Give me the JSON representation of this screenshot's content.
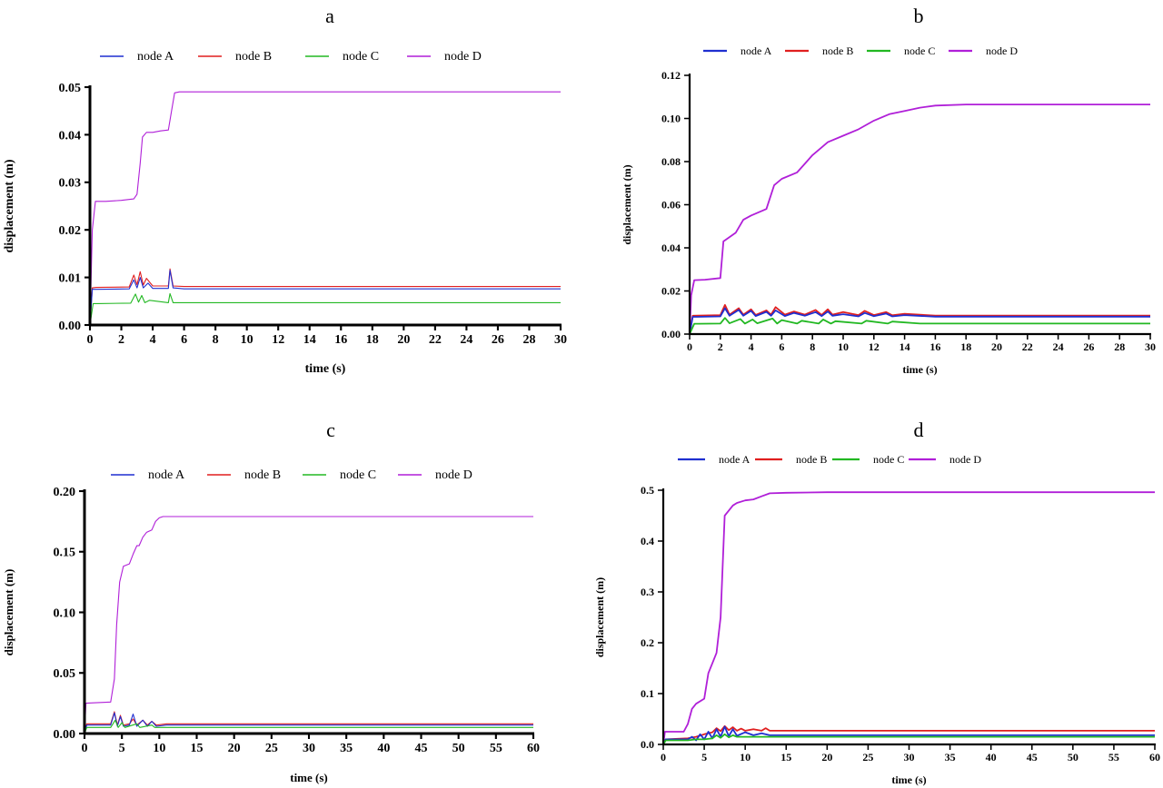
{
  "chart_data": [
    {
      "type": "line",
      "panel": "a",
      "xlabel": "time (s)",
      "ylabel": "displacement (m)",
      "xlim": [
        0,
        30
      ],
      "ylim": [
        0,
        0.05
      ],
      "xticks": [
        0,
        2,
        4,
        6,
        8,
        10,
        12,
        14,
        16,
        18,
        20,
        22,
        24,
        26,
        28,
        30
      ],
      "yticks": [
        "0.00",
        "0.01",
        "0.02",
        "0.03",
        "0.04",
        "0.05"
      ],
      "legend": "top",
      "series": [
        {
          "name": "node A",
          "color": "#1f2fd0",
          "x": [
            0,
            0.15,
            0.4,
            2.5,
            2.8,
            3.0,
            3.2,
            3.4,
            3.7,
            4.0,
            5.0,
            5.1,
            5.3,
            6,
            30
          ],
          "y": [
            0,
            0.0075,
            0.0075,
            0.0076,
            0.0095,
            0.0078,
            0.01,
            0.0078,
            0.0088,
            0.0077,
            0.0077,
            0.0115,
            0.0078,
            0.0076,
            0.0076
          ]
        },
        {
          "name": "node B",
          "color": "#e01f1f",
          "x": [
            0,
            0.15,
            0.4,
            2.5,
            2.8,
            3.0,
            3.2,
            3.4,
            3.6,
            4.0,
            5.0,
            5.1,
            5.3,
            6,
            30
          ],
          "y": [
            0,
            0.0078,
            0.0079,
            0.008,
            0.0105,
            0.0085,
            0.0112,
            0.0084,
            0.0098,
            0.0082,
            0.0082,
            0.0118,
            0.0082,
            0.0081,
            0.0081
          ]
        },
        {
          "name": "node C",
          "color": "#22b822",
          "x": [
            0,
            0.2,
            0.5,
            2.6,
            2.9,
            3.1,
            3.3,
            3.5,
            3.8,
            5.0,
            5.1,
            5.3,
            30
          ],
          "y": [
            0,
            0.0045,
            0.0045,
            0.0046,
            0.0065,
            0.0048,
            0.0062,
            0.0047,
            0.0052,
            0.0047,
            0.0066,
            0.0047,
            0.0047
          ]
        },
        {
          "name": "node D",
          "color": "#b01fd8",
          "x": [
            0,
            0.15,
            0.35,
            0.6,
            1,
            2,
            2.8,
            3.0,
            3.2,
            3.35,
            3.6,
            4.0,
            4.5,
            5.0,
            5.2,
            5.4,
            5.7,
            6.0,
            8,
            12,
            20,
            30
          ],
          "y": [
            0,
            0.02,
            0.026,
            0.026,
            0.026,
            0.0262,
            0.0265,
            0.0275,
            0.034,
            0.0395,
            0.0405,
            0.0405,
            0.0408,
            0.041,
            0.045,
            0.0488,
            0.049,
            0.049,
            0.049,
            0.049,
            0.049,
            0.049
          ]
        }
      ]
    },
    {
      "type": "line",
      "panel": "b",
      "xlabel": "time (s)",
      "ylabel": "displacement (m)",
      "xlim": [
        0,
        30
      ],
      "ylim": [
        0,
        0.12
      ],
      "xticks": [
        0,
        2,
        4,
        6,
        8,
        10,
        12,
        14,
        16,
        18,
        20,
        22,
        24,
        26,
        28,
        30
      ],
      "yticks": [
        "0.00",
        "0.02",
        "0.04",
        "0.06",
        "0.08",
        "0.10",
        "0.12"
      ],
      "legend": "top",
      "series": [
        {
          "name": "node A",
          "color": "#1f2fd0",
          "x": [
            0,
            0.2,
            0.5,
            2.0,
            2.3,
            2.6,
            3.2,
            3.5,
            4.0,
            4.3,
            5.0,
            5.3,
            5.6,
            6.2,
            6.8,
            7.5,
            8.2,
            8.6,
            9.0,
            9.3,
            10.0,
            11.0,
            11.4,
            12.0,
            12.8,
            13.2,
            14.0,
            16,
            30
          ],
          "y": [
            0,
            0.008,
            0.008,
            0.0082,
            0.012,
            0.0085,
            0.0112,
            0.0085,
            0.0108,
            0.0084,
            0.0103,
            0.0085,
            0.011,
            0.0084,
            0.0098,
            0.0085,
            0.0102,
            0.0084,
            0.0105,
            0.0085,
            0.0092,
            0.0082,
            0.0098,
            0.0083,
            0.0095,
            0.0082,
            0.0088,
            0.0081,
            0.0081
          ]
        },
        {
          "name": "node B",
          "color": "#e01f1f",
          "x": [
            0,
            0.2,
            0.5,
            2.0,
            2.3,
            2.6,
            3.2,
            3.5,
            4.0,
            4.3,
            5.0,
            5.3,
            5.6,
            6.2,
            6.8,
            7.5,
            8.2,
            8.6,
            9.0,
            9.3,
            10.0,
            11.0,
            11.4,
            12.0,
            12.8,
            13.2,
            14.0,
            16,
            30
          ],
          "y": [
            0,
            0.0085,
            0.0086,
            0.0088,
            0.0135,
            0.009,
            0.012,
            0.009,
            0.0115,
            0.0089,
            0.011,
            0.009,
            0.0125,
            0.009,
            0.0105,
            0.009,
            0.0112,
            0.0089,
            0.0115,
            0.009,
            0.0102,
            0.0088,
            0.0108,
            0.0088,
            0.0102,
            0.0087,
            0.0094,
            0.0086,
            0.0086
          ]
        },
        {
          "name": "node C",
          "color": "#22b822",
          "x": [
            0,
            0.3,
            0.6,
            2.0,
            2.3,
            2.6,
            3.3,
            3.6,
            4.1,
            4.4,
            5.4,
            5.7,
            6.0,
            7.0,
            7.3,
            8.4,
            8.7,
            9.2,
            9.5,
            11.2,
            11.5,
            12.9,
            13.2,
            15,
            30
          ],
          "y": [
            0,
            0.0048,
            0.0048,
            0.0049,
            0.0075,
            0.005,
            0.007,
            0.0049,
            0.0068,
            0.005,
            0.0072,
            0.0049,
            0.0065,
            0.0049,
            0.0062,
            0.0049,
            0.0068,
            0.0049,
            0.006,
            0.0049,
            0.0062,
            0.0049,
            0.0058,
            0.0049,
            0.0049
          ]
        },
        {
          "name": "node D",
          "color": "#b01fd8",
          "x": [
            0,
            0.1,
            0.3,
            1.0,
            2.0,
            2.2,
            2.4,
            3.0,
            3.5,
            4.0,
            5.0,
            5.5,
            6.0,
            7.0,
            7.5,
            8.0,
            8.5,
            9.0,
            10.0,
            11.0,
            12.0,
            13.0,
            14.0,
            15.0,
            16.0,
            18,
            20,
            24,
            30
          ],
          "y": [
            0,
            0.018,
            0.025,
            0.0252,
            0.026,
            0.043,
            0.044,
            0.047,
            0.053,
            0.055,
            0.058,
            0.069,
            0.072,
            0.075,
            0.079,
            0.083,
            0.086,
            0.089,
            0.092,
            0.095,
            0.099,
            0.102,
            0.1035,
            0.105,
            0.106,
            0.1065,
            0.1065,
            0.1065,
            0.1065
          ]
        }
      ]
    },
    {
      "type": "line",
      "panel": "c",
      "xlabel": "time (s)",
      "ylabel": "displacement (m)",
      "xlim": [
        0,
        60
      ],
      "ylim": [
        0,
        0.2
      ],
      "xticks": [
        0,
        5,
        10,
        15,
        20,
        25,
        30,
        35,
        40,
        45,
        50,
        55,
        60
      ],
      "yticks": [
        "0.00",
        "0.05",
        "0.10",
        "0.15",
        "0.20"
      ],
      "legend": "top",
      "series": [
        {
          "name": "node A",
          "color": "#1f2fd0",
          "x": [
            0,
            0.3,
            3.5,
            4.0,
            4.4,
            4.8,
            5.2,
            6.0,
            6.5,
            7.0,
            7.8,
            8.4,
            9.0,
            9.6,
            11,
            60
          ],
          "y": [
            0,
            0.007,
            0.007,
            0.017,
            0.006,
            0.014,
            0.006,
            0.007,
            0.016,
            0.006,
            0.011,
            0.006,
            0.01,
            0.006,
            0.007,
            0.007
          ]
        },
        {
          "name": "node B",
          "color": "#e01f1f",
          "x": [
            0,
            0.3,
            3.5,
            4.0,
            4.4,
            4.8,
            5.2,
            6.0,
            6.5,
            7.0,
            7.8,
            8.4,
            9.0,
            9.6,
            11,
            60
          ],
          "y": [
            0,
            0.008,
            0.008,
            0.018,
            0.007,
            0.015,
            0.007,
            0.008,
            0.012,
            0.007,
            0.011,
            0.007,
            0.01,
            0.007,
            0.008,
            0.008
          ]
        },
        {
          "name": "node C",
          "color": "#22b822",
          "x": [
            0,
            0.3,
            3.5,
            4.1,
            4.5,
            5.0,
            5.4,
            7.0,
            7.4,
            9.0,
            9.4,
            11,
            60
          ],
          "y": [
            0,
            0.005,
            0.005,
            0.011,
            0.005,
            0.009,
            0.005,
            0.008,
            0.005,
            0.007,
            0.005,
            0.005,
            0.005
          ]
        },
        {
          "name": "node D",
          "color": "#b01fd8",
          "x": [
            0,
            0.2,
            3.5,
            4.0,
            4.3,
            4.7,
            5.2,
            6.0,
            6.5,
            7.0,
            7.3,
            7.8,
            8.3,
            9.0,
            9.5,
            10.0,
            10.5,
            12,
            20,
            40,
            60
          ],
          "y": [
            0,
            0.025,
            0.026,
            0.045,
            0.09,
            0.125,
            0.138,
            0.14,
            0.148,
            0.155,
            0.155,
            0.162,
            0.166,
            0.168,
            0.175,
            0.178,
            0.179,
            0.179,
            0.179,
            0.179,
            0.179
          ]
        }
      ]
    },
    {
      "type": "line",
      "panel": "d",
      "xlabel": "time (s)",
      "ylabel": "displacement (m)",
      "xlim": [
        0,
        60
      ],
      "ylim": [
        0,
        0.5
      ],
      "xticks": [
        0,
        5,
        10,
        15,
        20,
        25,
        30,
        35,
        40,
        45,
        50,
        55,
        60
      ],
      "yticks": [
        "0.0",
        "0.1",
        "0.2",
        "0.3",
        "0.4",
        "0.5"
      ],
      "legend": "top",
      "series": [
        {
          "name": "node A",
          "color": "#1f2fd0",
          "x": [
            0,
            0.3,
            3.0,
            3.5,
            4.0,
            4.5,
            5.0,
            5.5,
            6.0,
            6.5,
            7.0,
            7.5,
            8.0,
            8.5,
            9.0,
            10.0,
            11.0,
            12.0,
            13.0,
            15,
            60
          ],
          "y": [
            0,
            0.01,
            0.01,
            0.015,
            0.008,
            0.02,
            0.01,
            0.025,
            0.012,
            0.03,
            0.015,
            0.035,
            0.016,
            0.03,
            0.017,
            0.024,
            0.018,
            0.022,
            0.018,
            0.018,
            0.018
          ]
        },
        {
          "name": "node B",
          "color": "#e01f1f",
          "x": [
            0,
            0.3,
            3.0,
            4.0,
            5.0,
            6.0,
            6.5,
            7.0,
            7.5,
            8.0,
            8.5,
            9.0,
            9.5,
            10.0,
            11.0,
            12.0,
            12.5,
            13.0,
            16,
            60
          ],
          "y": [
            0,
            0.01,
            0.012,
            0.015,
            0.02,
            0.024,
            0.032,
            0.026,
            0.036,
            0.028,
            0.034,
            0.027,
            0.031,
            0.027,
            0.03,
            0.027,
            0.032,
            0.027,
            0.027,
            0.027
          ]
        },
        {
          "name": "node C",
          "color": "#22b822",
          "x": [
            0,
            0.3,
            3.0,
            4.0,
            5.0,
            6.0,
            6.5,
            7.0,
            7.5,
            8.0,
            8.5,
            9.0,
            10.0,
            12,
            60
          ],
          "y": [
            0,
            0.008,
            0.008,
            0.01,
            0.01,
            0.012,
            0.018,
            0.013,
            0.02,
            0.014,
            0.018,
            0.015,
            0.015,
            0.015,
            0.015
          ]
        },
        {
          "name": "node D",
          "color": "#b01fd8",
          "x": [
            0,
            0.2,
            2.5,
            3.0,
            3.5,
            4.0,
            5.0,
            5.5,
            6.0,
            6.5,
            7.0,
            7.2,
            7.5,
            8.0,
            8.5,
            9.0,
            10.0,
            11.0,
            12.0,
            13.0,
            15.0,
            20,
            30,
            45,
            60
          ],
          "y": [
            0,
            0.025,
            0.025,
            0.04,
            0.07,
            0.08,
            0.09,
            0.14,
            0.16,
            0.18,
            0.25,
            0.33,
            0.45,
            0.46,
            0.47,
            0.475,
            0.48,
            0.482,
            0.488,
            0.494,
            0.495,
            0.496,
            0.496,
            0.496,
            0.496
          ]
        }
      ]
    }
  ]
}
